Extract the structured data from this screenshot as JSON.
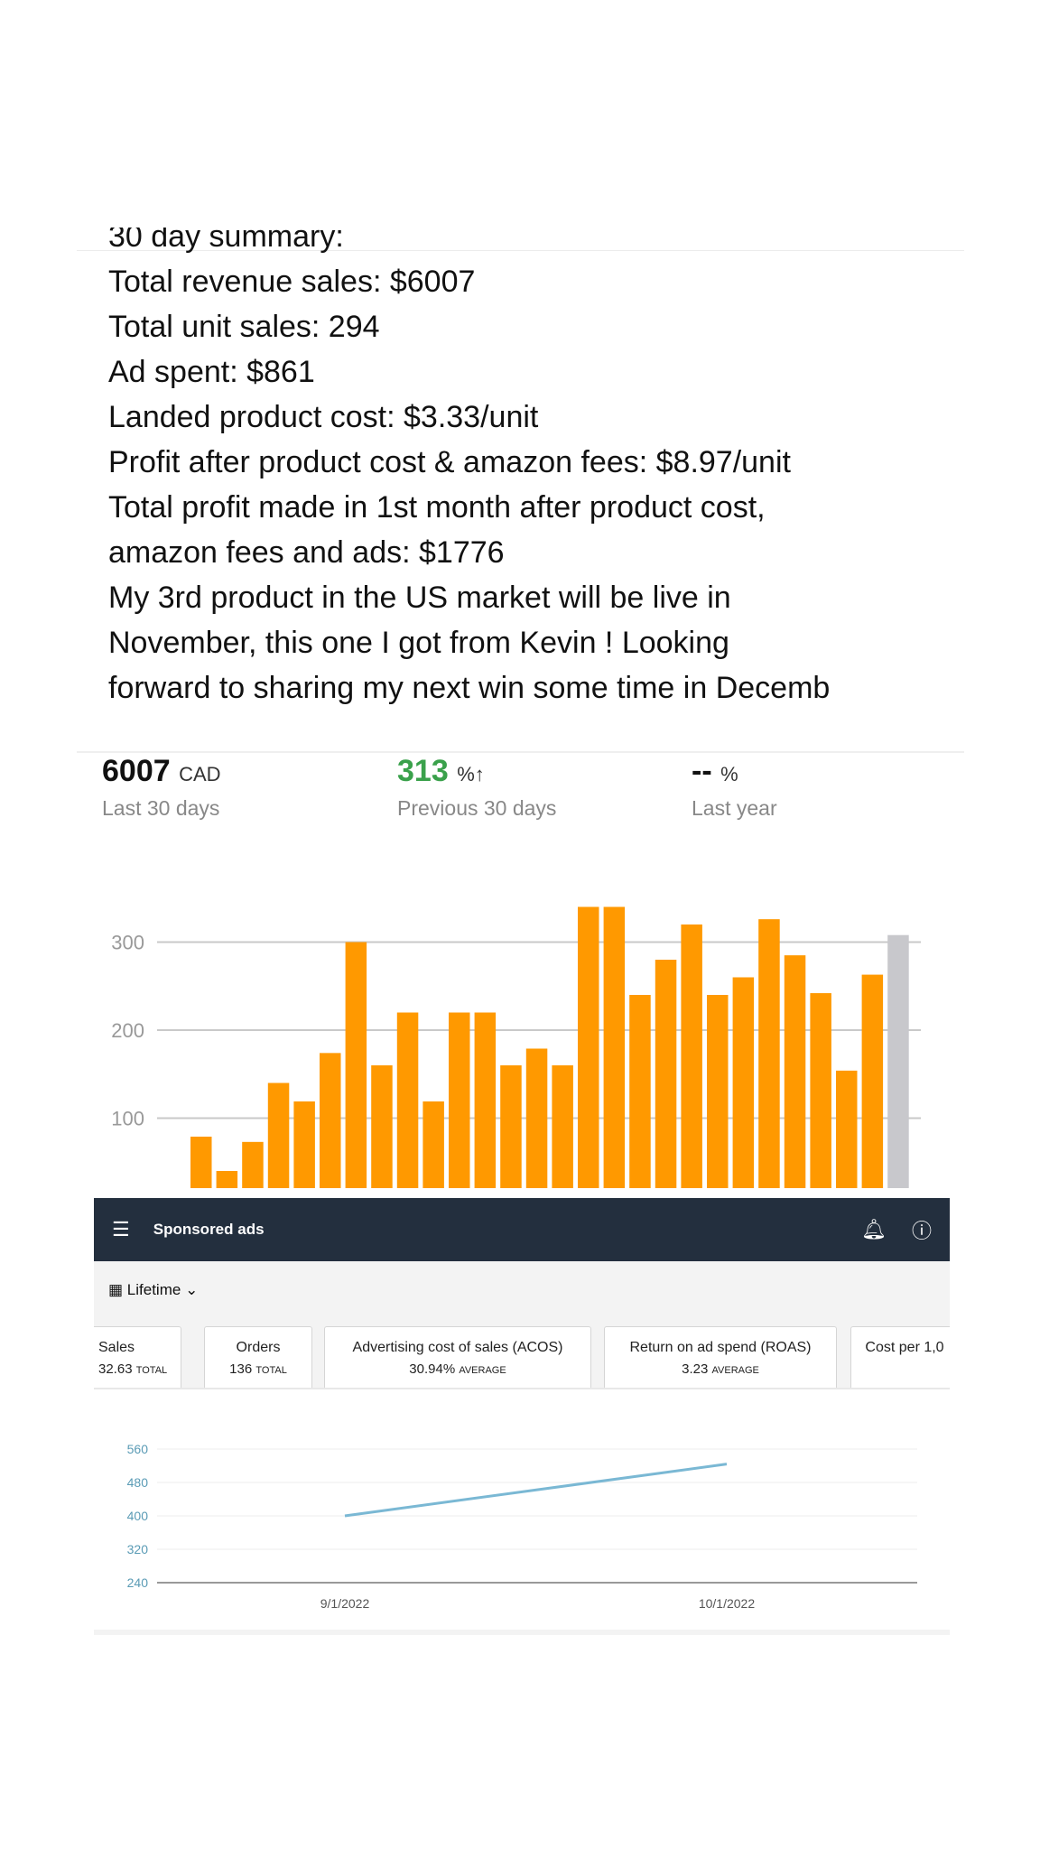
{
  "post": {
    "lines": [
      "30 day summary:",
      "Total revenue sales: $6007",
      "Total unit sales: 294",
      "Ad spent: $861",
      "Landed product cost: $3.33/unit",
      "Profit after product cost & amazon fees: $8.97/unit",
      "Total profit made in 1st month after product cost,",
      "amazon fees and ads: $1776",
      "My 3rd product in the US market will be live in",
      "November, this one I got from Kevin ! Looking",
      "forward to sharing my next win some time in Decemb"
    ]
  },
  "stats": {
    "sales_value": "6007",
    "sales_unit": "CAD",
    "sales_period": "Last 30 days",
    "change_value": "313",
    "change_unit": "%",
    "change_arrow": "↑",
    "change_period": "Previous 30 days",
    "yoy_value": "--",
    "yoy_unit": "%",
    "yoy_period": "Last year"
  },
  "chart_data": [
    {
      "type": "bar",
      "yticks": [
        100,
        200,
        300
      ],
      "grid": true,
      "colors": {
        "bars": "#ff9900",
        "current": "#c8c8cc"
      },
      "values": [
        79,
        40,
        73,
        140,
        119,
        174,
        300,
        160,
        220,
        119,
        220,
        220,
        160,
        179,
        160,
        340,
        340,
        240,
        280,
        320,
        240,
        260,
        326,
        285,
        242,
        154,
        263,
        308
      ]
    },
    {
      "type": "line",
      "yticks": [
        240,
        320,
        400,
        480,
        560
      ],
      "xticks": [
        "9/1/2022",
        "10/1/2022"
      ],
      "color": "#7ab8d4",
      "grid": true,
      "points": [
        {
          "x": "9/1/2022",
          "y": 400
        },
        {
          "x": "10/1/2022",
          "y": 524
        }
      ]
    }
  ],
  "ads": {
    "title": "Sponsored ads",
    "range": "Lifetime",
    "cards": [
      {
        "label": "Sales",
        "value": "32.63",
        "suffix": "TOTAL"
      },
      {
        "label": "Orders",
        "value": "136",
        "suffix": "TOTAL"
      },
      {
        "label": "Advertising cost of sales (ACOS)",
        "value": "30.94%",
        "suffix": "AVERAGE"
      },
      {
        "label": "Return on ad spend (ROAS)",
        "value": "3.23",
        "suffix": "AVERAGE"
      },
      {
        "label": "Cost per 1,0",
        "value": "",
        "suffix": ""
      }
    ]
  }
}
